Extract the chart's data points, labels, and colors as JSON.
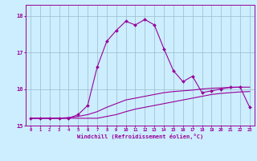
{
  "xlabel": "Windchill (Refroidissement éolien,°C)",
  "background_color": "#cceeff",
  "grid_color": "#99bbcc",
  "line_color": "#990099",
  "x_hours": [
    0,
    1,
    2,
    3,
    4,
    5,
    6,
    7,
    8,
    9,
    10,
    11,
    12,
    13,
    14,
    15,
    16,
    17,
    18,
    19,
    20,
    21,
    22,
    23
  ],
  "y_main": [
    15.2,
    15.2,
    15.2,
    15.2,
    15.2,
    15.3,
    15.55,
    16.6,
    17.3,
    17.6,
    17.85,
    17.75,
    17.9,
    17.75,
    17.1,
    16.5,
    16.2,
    16.35,
    15.9,
    15.95,
    16.0,
    16.05,
    16.05,
    15.5
  ],
  "y_low": [
    15.2,
    15.2,
    15.2,
    15.2,
    15.2,
    15.2,
    15.2,
    15.2,
    15.25,
    15.3,
    15.38,
    15.45,
    15.5,
    15.55,
    15.6,
    15.65,
    15.7,
    15.75,
    15.8,
    15.85,
    15.88,
    15.9,
    15.92,
    15.93
  ],
  "y_mid": [
    15.2,
    15.2,
    15.2,
    15.2,
    15.22,
    15.25,
    15.3,
    15.38,
    15.5,
    15.6,
    15.7,
    15.75,
    15.8,
    15.85,
    15.9,
    15.93,
    15.95,
    15.97,
    16.0,
    16.02,
    16.03,
    16.04,
    16.05,
    16.05
  ],
  "ylim": [
    15.0,
    18.3
  ],
  "yticks": [
    15,
    16,
    17,
    18
  ],
  "xticks": [
    0,
    1,
    2,
    3,
    4,
    5,
    6,
    7,
    8,
    9,
    10,
    11,
    12,
    13,
    14,
    15,
    16,
    17,
    18,
    19,
    20,
    21,
    22,
    23
  ],
  "figsize": [
    3.2,
    2.0
  ],
  "dpi": 100
}
